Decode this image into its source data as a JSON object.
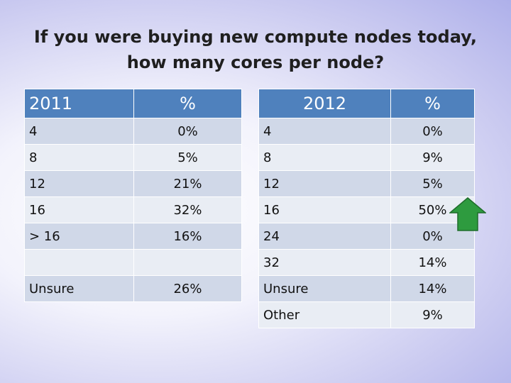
{
  "title": {
    "line1": "If you were buying new compute nodes today,",
    "line2": "how many cores per node?"
  },
  "table_2011": {
    "headers": [
      "2011",
      "%"
    ],
    "rows": [
      [
        "4",
        "0%"
      ],
      [
        "8",
        "5%"
      ],
      [
        "12",
        "21%"
      ],
      [
        "16",
        "32%"
      ],
      [
        "> 16",
        "16%"
      ],
      [
        "",
        ""
      ],
      [
        "Unsure",
        "26%"
      ]
    ]
  },
  "table_2012": {
    "headers": [
      "2012",
      "%"
    ],
    "rows": [
      [
        "4",
        "0%"
      ],
      [
        "8",
        "9%"
      ],
      [
        "12",
        "5%"
      ],
      [
        "16",
        "50%"
      ],
      [
        "24",
        "0%"
      ],
      [
        "32",
        "14%"
      ],
      [
        "Unsure",
        "14%"
      ],
      [
        "Other",
        "9%"
      ]
    ]
  },
  "colors": {
    "header_bg": "#4f81bd",
    "row_odd": "#d0d8e8",
    "row_even": "#e9edf4",
    "arrow": "#2e9b3f"
  },
  "icons": {
    "increase_marker": "green-up-arrow-icon"
  }
}
